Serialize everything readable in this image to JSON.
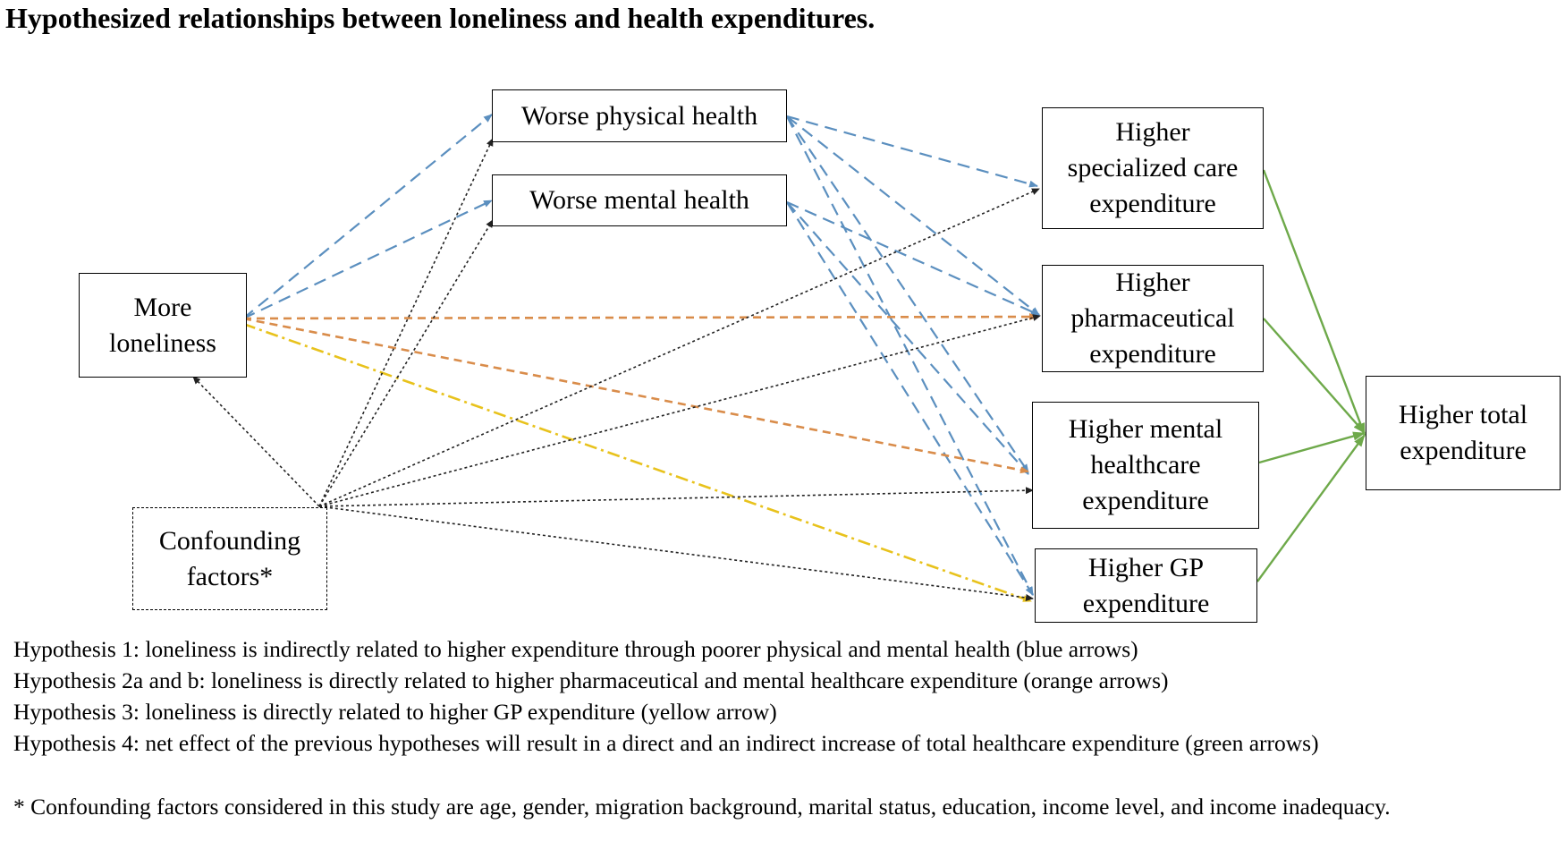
{
  "title": "Hypothesized relationships between loneliness and health expenditures.",
  "nodes": {
    "loneliness": "More\nloneliness",
    "confounding": "Confounding\nfactors*",
    "physical": "Worse physical health",
    "mental": "Worse mental health",
    "specialized": "Higher\nspecialized care\nexpenditure",
    "pharmaceutical": "Higher\npharmaceutical\nexpenditure",
    "mental_healthcare": "Higher mental\nhealthcare\nexpenditure",
    "gp": "Higher GP\nexpenditure",
    "total": "Higher total\nexpenditure"
  },
  "colors": {
    "blue": "#5b8fbf",
    "orange": "#d98c4a",
    "yellow": "#e8c21c",
    "green": "#6ea94a",
    "black": "#222222"
  },
  "hypotheses": [
    "Hypothesis 1: loneliness is indirectly related to higher expenditure through poorer physical and mental health (blue arrows)",
    "Hypothesis 2a and b: loneliness is directly related to higher pharmaceutical and mental healthcare expenditure (orange arrows)",
    "Hypothesis 3: loneliness is directly related to higher GP expenditure (yellow arrow)",
    "Hypothesis 4: net effect of the previous hypotheses will result in a direct and an indirect increase of total healthcare expenditure (green arrows)"
  ],
  "footnote": "* Confounding factors considered in this study are age, gender, migration background, marital status, education, income level, and income inadequacy."
}
